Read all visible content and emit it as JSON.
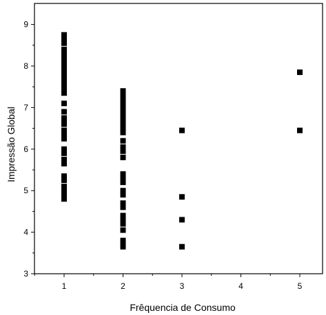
{
  "chart_data": {
    "type": "scatter",
    "xlabel": "Frêquencia de Consumo",
    "ylabel": "Impressão Global",
    "xlim": [
      0.5,
      5.1
    ],
    "ylim": [
      3,
      9.5
    ],
    "xticks": [
      "1",
      "2",
      "3",
      "4",
      "5"
    ],
    "yticks": [
      "3",
      "4",
      "5",
      "6",
      "7",
      "8",
      "9"
    ],
    "grid": false,
    "legend": "none",
    "marker": "square",
    "marker_color": "#000000",
    "series": [
      {
        "x": [
          1,
          1,
          1,
          1,
          1,
          1,
          1,
          1,
          1,
          1,
          1,
          1,
          1,
          1,
          1,
          1,
          1,
          1,
          1,
          1,
          1,
          1,
          1,
          1,
          1,
          1,
          1,
          1,
          1,
          1,
          1,
          1,
          1,
          1,
          1,
          1,
          2,
          2,
          2,
          2,
          2,
          2,
          2,
          2,
          2,
          2,
          2,
          2,
          2,
          2,
          2,
          2,
          2,
          2,
          2,
          2,
          2,
          2,
          2,
          2,
          2,
          2,
          2,
          2,
          2,
          2,
          2,
          2,
          2,
          3,
          3,
          3,
          3,
          5,
          5
        ],
        "y": [
          8.75,
          8.65,
          8.55,
          8.3,
          8.2,
          8.1,
          8.0,
          7.9,
          7.85,
          7.75,
          7.65,
          7.55,
          7.45,
          7.35,
          7.1,
          6.9,
          6.75,
          6.6,
          6.45,
          6.35,
          6.25,
          6.0,
          5.9,
          5.75,
          5.65,
          5.35,
          5.25,
          5.1,
          5.0,
          4.9,
          4.8,
          8.7,
          8.4,
          7.95,
          6.7,
          5.3,
          7.4,
          7.3,
          7.2,
          7.1,
          7.0,
          6.9,
          6.8,
          6.7,
          6.6,
          6.5,
          6.4,
          6.2,
          6.05,
          5.95,
          5.8,
          5.4,
          5.3,
          5.2,
          5.0,
          4.9,
          4.7,
          4.6,
          4.4,
          4.3,
          4.2,
          4.05,
          3.8,
          3.7,
          3.65,
          6.45,
          6.5,
          6.55,
          6.6,
          6.45,
          4.85,
          4.3,
          3.65,
          7.85,
          6.45
        ]
      }
    ]
  }
}
